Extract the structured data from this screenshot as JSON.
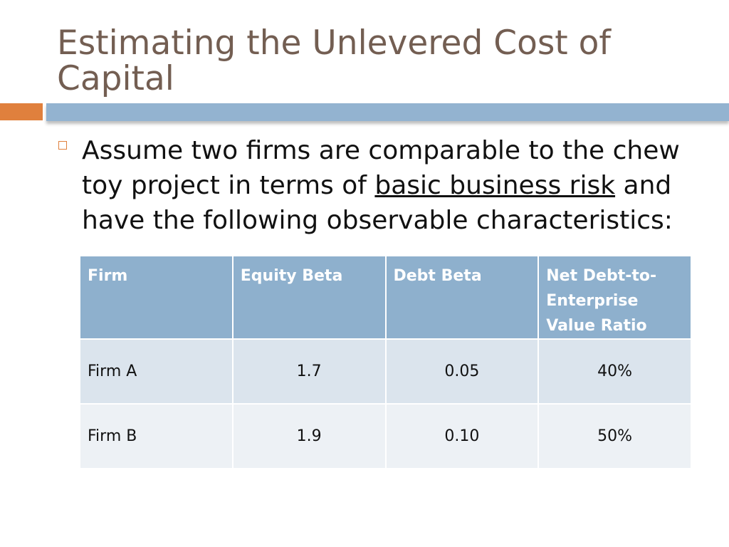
{
  "title": "Estimating the Unlevered Cost of Capital",
  "bullet": {
    "before": "Assume two firms are comparable to the chew toy project in terms of ",
    "underlined": "basic business risk",
    "after": " and have the following observable characteristics:"
  },
  "table": {
    "header": [
      "Firm",
      "Equity Beta",
      "Debt Beta",
      "Net Debt-to-Enterprise Value Ratio"
    ],
    "rows": [
      [
        "Firm A",
        "1.7",
        "0.05",
        "40%"
      ],
      [
        "Firm B",
        "1.9",
        "0.10",
        "50%"
      ]
    ]
  }
}
